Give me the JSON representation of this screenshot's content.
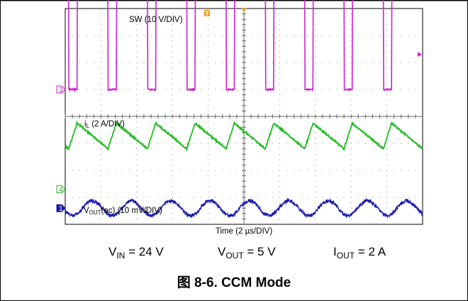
{
  "figure": {
    "caption_prefix": "图 8-6.",
    "caption_title": "CCM Mode"
  },
  "conditions": {
    "vin": {
      "sym": "V",
      "sub": "IN",
      "val": " = 24 V"
    },
    "vout": {
      "sym": "V",
      "sub": "OUT",
      "val": " = 5 V"
    },
    "iout": {
      "sym": "I",
      "sub": "OUT",
      "val": " = 2 A"
    }
  },
  "chart_data": {
    "type": "line",
    "xlabel": "Time (2 µs/DIV)",
    "x_divisions": 10,
    "y_divisions": 8,
    "grid": true,
    "x_range_us": [
      0,
      20
    ],
    "switching_period_us": 2.2,
    "duty_cycle": 0.21,
    "channels": [
      {
        "id": "3",
        "marker": "3",
        "name": "SW (10 V/DIV)",
        "color": "#cc22cc",
        "ground_div": 1.0,
        "low_div": 1.0,
        "high_div": 4.85,
        "volts_per_div": 10
      },
      {
        "id": "4",
        "marker": "4",
        "name_main": "i",
        "name_sub": "L",
        "name_rest": " (2 A/DIV)",
        "color": "#22bb22",
        "ground_div": -2.7,
        "valley_div": -1.2,
        "peak_div": -0.25,
        "amps_per_div": 2
      },
      {
        "id": "1",
        "marker": "1",
        "name_main": "V",
        "name_sub": "OUT",
        "name_rest": "(ac) (10 mV/DIV)",
        "color": "#1a1aaa",
        "ground_div": -3.4,
        "ripple_pp_div": 0.55,
        "volts_per_div": 0.01
      }
    ]
  }
}
